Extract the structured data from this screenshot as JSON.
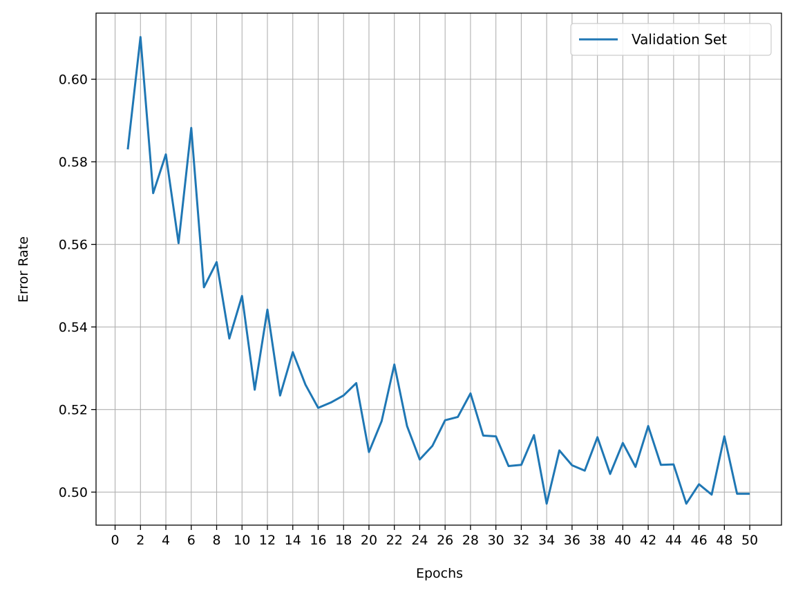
{
  "chart_data": {
    "type": "line",
    "title": "",
    "xlabel": "Epochs",
    "ylabel": "Error Rate",
    "xlim": [
      -1.5,
      52.5
    ],
    "ylim": [
      0.492,
      0.616
    ],
    "xticks": [
      0,
      2,
      4,
      6,
      8,
      10,
      12,
      14,
      16,
      18,
      20,
      22,
      24,
      26,
      28,
      30,
      32,
      34,
      36,
      38,
      40,
      42,
      44,
      46,
      48,
      50
    ],
    "yticks": [
      0.5,
      0.52,
      0.54,
      0.56,
      0.58,
      0.6
    ],
    "ytick_labels": [
      "0.50",
      "0.52",
      "0.54",
      "0.56",
      "0.58",
      "0.60"
    ],
    "grid": true,
    "legend_position": "top-right",
    "series": [
      {
        "name": "Validation Set",
        "color": "#1f77b4",
        "x": [
          1,
          2,
          3,
          4,
          5,
          6,
          7,
          8,
          9,
          10,
          11,
          12,
          13,
          14,
          15,
          16,
          17,
          18,
          19,
          20,
          21,
          22,
          23,
          24,
          25,
          26,
          27,
          28,
          29,
          30,
          31,
          32,
          33,
          34,
          35,
          36,
          37,
          38,
          39,
          40,
          41,
          42,
          43,
          44,
          45,
          46,
          47,
          48,
          49,
          50
        ],
        "y": [
          0.583,
          0.6102,
          0.5724,
          0.5818,
          0.5603,
          0.5882,
          0.5496,
          0.5557,
          0.5372,
          0.5475,
          0.5248,
          0.5442,
          0.5234,
          0.5339,
          0.526,
          0.5204,
          0.5217,
          0.5234,
          0.5264,
          0.5097,
          0.5172,
          0.5309,
          0.516,
          0.5079,
          0.5112,
          0.5174,
          0.5182,
          0.5239,
          0.5137,
          0.5135,
          0.5063,
          0.5066,
          0.5138,
          0.4972,
          0.5101,
          0.5065,
          0.5052,
          0.5133,
          0.5044,
          0.5119,
          0.5061,
          0.516,
          0.5066,
          0.5067,
          0.4972,
          0.5019,
          0.4994,
          0.5135,
          0.4996,
          0.4996
        ]
      }
    ]
  }
}
